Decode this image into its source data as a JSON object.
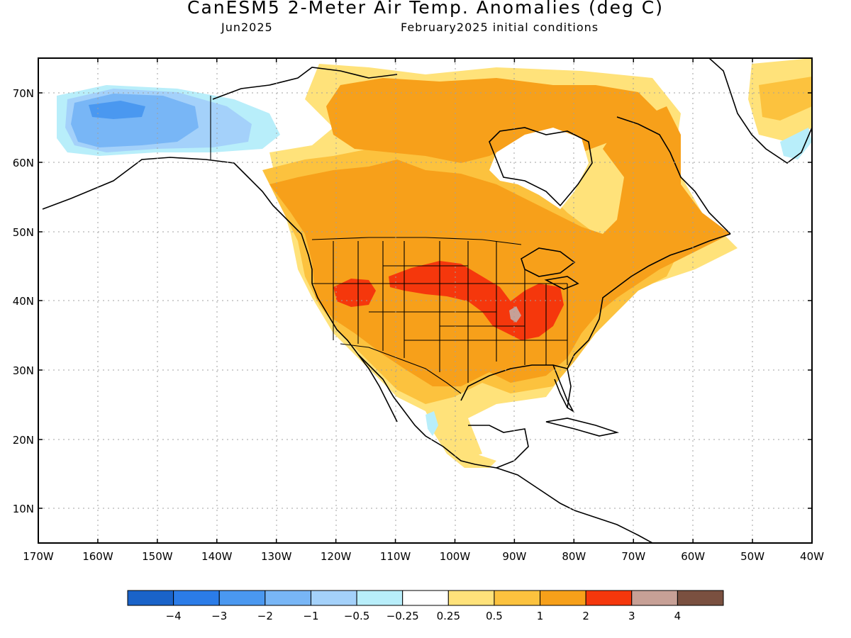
{
  "title": "CanESM5 2-Meter Air Temp. Anomalies (deg C)",
  "subtitle_left": "Jun2025",
  "subtitle_right": "February2025 initial conditions",
  "lat_labels": [
    "70N",
    "60N",
    "50N",
    "40N",
    "30N",
    "20N",
    "10N"
  ],
  "lon_labels": [
    "170W",
    "160W",
    "150W",
    "140W",
    "130W",
    "120W",
    "110W",
    "100W",
    "90W",
    "80W",
    "70W",
    "60W",
    "50W",
    "40W"
  ],
  "colorbar": {
    "colors": [
      "#1a63c9",
      "#2b7ce8",
      "#4a98f0",
      "#78b6f6",
      "#a4d1fa",
      "#b8eefa",
      "#ffffff",
      "#ffe27a",
      "#fcc23e",
      "#f7a01a",
      "#f5370c",
      "#c7a096",
      "#7a5040"
    ],
    "labels": [
      "−4",
      "−3",
      "−2",
      "−1",
      "−0.5",
      "−0.25",
      "0.25",
      "0.5",
      "1",
      "2",
      "3",
      "4"
    ]
  },
  "colors": {
    "land_outline": "#000000",
    "grid": "#a0a0a0"
  }
}
